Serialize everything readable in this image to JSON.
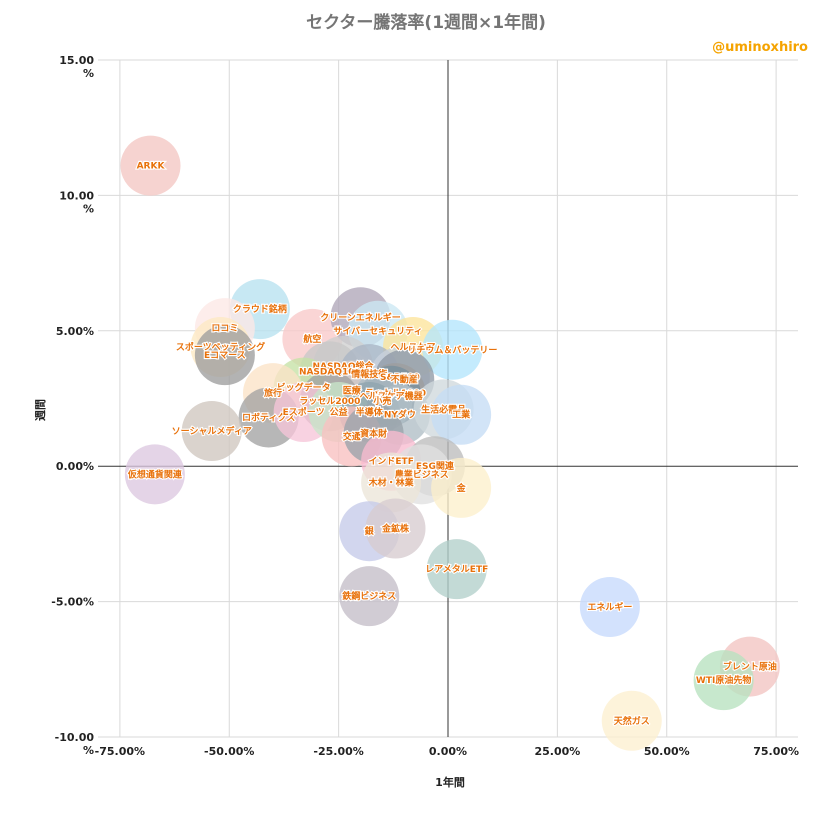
{
  "chart_data": {
    "type": "scatter",
    "title": "セクター騰落率(1週間×1年間)",
    "credit": "@uminoxhiro",
    "xlabel": "1年間",
    "ylabel": "週間",
    "xlim": [
      -0.8,
      0.8
    ],
    "ylim": [
      -10.0,
      15.0
    ],
    "grid": true,
    "x_ticks": [
      {
        "value": -0.75,
        "label": "-75.00%"
      },
      {
        "value": -0.5,
        "label": "-50.00%"
      },
      {
        "value": -0.25,
        "label": "-25.00%"
      },
      {
        "value": 0.0,
        "label": "0.00%"
      },
      {
        "value": 0.25,
        "label": "25.00%"
      },
      {
        "value": 0.5,
        "label": "50.00%"
      },
      {
        "value": 0.75,
        "label": "75.00%"
      }
    ],
    "y_ticks": [
      {
        "value": 15.0,
        "label": "15.00\n%"
      },
      {
        "value": 10.0,
        "label": "10.00\n%"
      },
      {
        "value": 5.0,
        "label": "5.00%"
      },
      {
        "value": 0.0,
        "label": "0.00%"
      },
      {
        "value": -5.0,
        "label": "-5.00%"
      },
      {
        "value": -10.0,
        "label": "-10.00\n%"
      }
    ],
    "points": [
      {
        "name": "ARKK",
        "x": -0.68,
        "y": 11.1,
        "color": "#f4c7c3"
      },
      {
        "name": "クラウド銘柄",
        "x": -0.43,
        "y": 5.8,
        "color": "#b7e1ef"
      },
      {
        "name": "ロコミ",
        "x": -0.51,
        "y": 5.1,
        "color": "#fce8e6"
      },
      {
        "name": "スポーツベッティング",
        "x": -0.52,
        "y": 4.4,
        "color": "#fde9c3"
      },
      {
        "name": "Eコマース",
        "x": -0.51,
        "y": 4.1,
        "color": "#9e9e9e"
      },
      {
        "name": "航空",
        "x": -0.31,
        "y": 4.7,
        "color": "#f8c9c9"
      },
      {
        "name": "クリーンエネルギー",
        "x": -0.2,
        "y": 5.5,
        "color": "#b0a6b8"
      },
      {
        "name": "サイバーセキュリティ",
        "x": -0.16,
        "y": 5.0,
        "color": "#cce8f4"
      },
      {
        "name": "ヘルスケア",
        "x": -0.08,
        "y": 4.4,
        "color": "#fde49b"
      },
      {
        "name": "リチウム＆バッテリー",
        "x": 0.01,
        "y": 4.3,
        "color": "#b3e5fc"
      },
      {
        "name": "NASDAQ総合",
        "x": -0.24,
        "y": 3.7,
        "color": "#cfcfcf"
      },
      {
        "name": "NASDAQ100",
        "x": -0.27,
        "y": 3.5,
        "color": "#c8c8c8"
      },
      {
        "name": "情報技術",
        "x": -0.18,
        "y": 3.4,
        "color": "#a9b5c4"
      },
      {
        "name": "S&P500",
        "x": -0.11,
        "y": 3.3,
        "color": "#c9d2dc"
      },
      {
        "name": "不動産",
        "x": -0.1,
        "y": 3.2,
        "color": "#8f9aa6"
      },
      {
        "name": "ビッグデータ",
        "x": -0.33,
        "y": 2.9,
        "color": "#c5e1a5"
      },
      {
        "name": "医療",
        "x": -0.22,
        "y": 2.8,
        "color": "#d7ccc8"
      },
      {
        "name": "ラッセル1000",
        "x": -0.12,
        "y": 2.7,
        "color": "#9e9e9e"
      },
      {
        "name": "旅行",
        "x": -0.4,
        "y": 2.7,
        "color": "#fbe3c7"
      },
      {
        "name": "ヘルスケア機器",
        "x": -0.13,
        "y": 2.6,
        "color": "#78909c"
      },
      {
        "name": "小売",
        "x": -0.15,
        "y": 2.4,
        "color": "#b0bec5"
      },
      {
        "name": "ラッセル2000",
        "x": -0.27,
        "y": 2.4,
        "color": "#a1a1a1"
      },
      {
        "name": "ロボティクス",
        "x": -0.41,
        "y": 1.8,
        "color": "#a3a3a3"
      },
      {
        "name": "Eスポーツ",
        "x": -0.33,
        "y": 2.0,
        "color": "#f6c5d8"
      },
      {
        "name": "公益",
        "x": -0.25,
        "y": 2.0,
        "color": "#c8e6c9"
      },
      {
        "name": "半導体",
        "x": -0.18,
        "y": 2.0,
        "color": "#90a4ae"
      },
      {
        "name": "NYダウ",
        "x": -0.11,
        "y": 1.9,
        "color": "#b0bec5"
      },
      {
        "name": "生活必需品",
        "x": -0.01,
        "y": 2.1,
        "color": "#cfd8dc"
      },
      {
        "name": "工業",
        "x": 0.03,
        "y": 1.9,
        "color": "#c5dcf5"
      },
      {
        "name": "ソーシャルメディア",
        "x": -0.54,
        "y": 1.3,
        "color": "#cfc7bf"
      },
      {
        "name": "交通",
        "x": -0.22,
        "y": 1.1,
        "color": "#f8c0c0"
      },
      {
        "name": "資本財",
        "x": -0.17,
        "y": 1.2,
        "color": "#9aa3ab"
      },
      {
        "name": "インドETF",
        "x": -0.13,
        "y": 0.2,
        "color": "#f8bbd0"
      },
      {
        "name": "ESG関連",
        "x": -0.03,
        "y": 0.0,
        "color": "#bdbdbd"
      },
      {
        "name": "農業ビジネス",
        "x": -0.06,
        "y": -0.3,
        "color": "#e0e0e0"
      },
      {
        "name": "木材・林業",
        "x": -0.13,
        "y": -0.6,
        "color": "#ece5d8"
      },
      {
        "name": "金",
        "x": 0.03,
        "y": -0.8,
        "color": "#fdf0cc"
      },
      {
        "name": "仮想通貨関連",
        "x": -0.67,
        "y": -0.3,
        "color": "#dcc8e0"
      },
      {
        "name": "銀",
        "x": -0.18,
        "y": -2.4,
        "color": "#c5cae9"
      },
      {
        "name": "金鉱株",
        "x": -0.12,
        "y": -2.3,
        "color": "#d7ccd0"
      },
      {
        "name": "レアメタルETF",
        "x": 0.02,
        "y": -3.8,
        "color": "#b2cfcb"
      },
      {
        "name": "鉄鋼ビジネス",
        "x": -0.18,
        "y": -4.8,
        "color": "#c4bec8"
      },
      {
        "name": "エネルギー",
        "x": 0.37,
        "y": -5.2,
        "color": "#c6dafc"
      },
      {
        "name": "ブレント原油",
        "x": 0.69,
        "y": -7.4,
        "color": "#f2c4c1"
      },
      {
        "name": "WTI原油先物",
        "x": 0.63,
        "y": -7.9,
        "color": "#b7e1bf"
      },
      {
        "name": "天然ガス",
        "x": 0.42,
        "y": -9.4,
        "color": "#fdf0d0"
      }
    ]
  }
}
